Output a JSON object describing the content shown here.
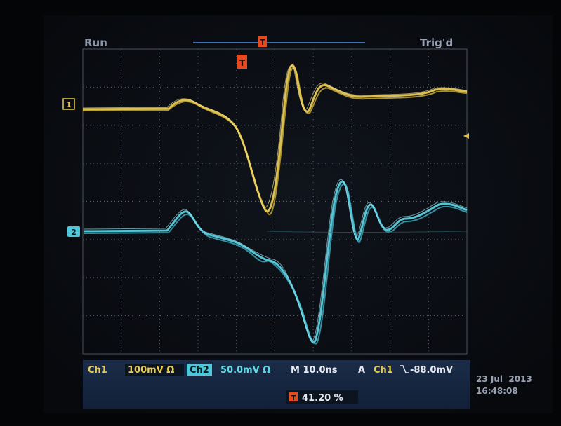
{
  "status": {
    "mode": "Run",
    "trigger_state": "Trig'd",
    "trigger_marker": "T",
    "position_marker": "T"
  },
  "channels": {
    "ch1_marker": "1",
    "ch2_marker": "2"
  },
  "readout": {
    "ch1_label": "Ch1",
    "ch1_scale": "100mV Ω",
    "ch2_label": "Ch2",
    "ch2_scale": "50.0mV Ω",
    "timebase": "M 10.0ns",
    "trigger_mode": "A",
    "trigger_source": "Ch1",
    "trigger_level": "-88.0mV",
    "position_marker": "T",
    "position": "41.20 %"
  },
  "timestamp": {
    "date": "23 Jul  2013",
    "time": "16:48:08"
  }
}
